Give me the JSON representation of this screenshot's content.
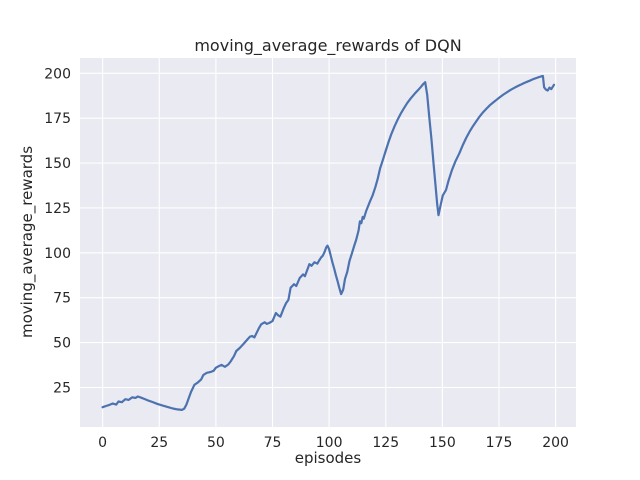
{
  "chart_data": {
    "type": "line",
    "title": "moving_average_rewards of DQN",
    "xlabel": "episodes",
    "ylabel": "moving_average_rewards",
    "x_ticks": [
      0,
      25,
      50,
      75,
      100,
      125,
      150,
      175,
      200
    ],
    "y_ticks": [
      25,
      50,
      75,
      100,
      125,
      150,
      175,
      200
    ],
    "xlim": [
      -10,
      209
    ],
    "ylim": [
      3,
      208.5
    ],
    "grid": true,
    "legend": "none",
    "colors": {
      "line": "#4C72B0",
      "plot_background": "#EAEAF2",
      "gridline": "#FFFFFF",
      "text": "#262626",
      "figure_background": "#FFFFFF"
    },
    "series": [
      {
        "name": "moving_average_rewards",
        "points": [
          [
            0,
            14
          ],
          [
            1.5,
            14.7
          ],
          [
            3,
            15.3
          ],
          [
            4.5,
            16.1
          ],
          [
            6,
            15.5
          ],
          [
            7,
            17.2
          ],
          [
            8.5,
            16.8
          ],
          [
            10,
            18.5
          ],
          [
            11.5,
            18.1
          ],
          [
            13,
            19.5
          ],
          [
            14.5,
            19.2
          ],
          [
            15.5,
            20
          ],
          [
            17,
            19.3
          ],
          [
            18.5,
            18.6
          ],
          [
            20,
            17.8
          ],
          [
            22,
            16.9
          ],
          [
            24,
            15.9
          ],
          [
            26.5,
            14.9
          ],
          [
            29,
            14
          ],
          [
            31,
            13.3
          ],
          [
            33,
            12.8
          ],
          [
            35,
            12.5
          ],
          [
            36,
            13.2
          ],
          [
            37,
            15.5
          ],
          [
            38,
            19
          ],
          [
            39,
            22.5
          ],
          [
            40.5,
            26.5
          ],
          [
            42,
            27.8
          ],
          [
            43.5,
            29.5
          ],
          [
            44.5,
            32
          ],
          [
            46,
            33.2
          ],
          [
            47.5,
            33.6
          ],
          [
            49,
            34.3
          ],
          [
            50,
            36
          ],
          [
            51.5,
            37
          ],
          [
            52.5,
            37.6
          ],
          [
            54,
            36.5
          ],
          [
            55.5,
            37.8
          ],
          [
            56.5,
            39.5
          ],
          [
            58,
            42.5
          ],
          [
            59,
            45.3
          ],
          [
            60.5,
            47
          ],
          [
            62,
            49
          ],
          [
            63.5,
            51.2
          ],
          [
            65,
            53.3
          ],
          [
            66,
            53.7
          ],
          [
            67,
            52.9
          ],
          [
            68,
            55.5
          ],
          [
            69,
            58
          ],
          [
            70,
            60.2
          ],
          [
            71.5,
            61.3
          ],
          [
            72.5,
            60.4
          ],
          [
            73.5,
            60.9
          ],
          [
            75,
            62
          ],
          [
            76.5,
            66.5
          ],
          [
            77.5,
            65.2
          ],
          [
            78.5,
            64.4
          ],
          [
            80,
            69.3
          ],
          [
            81,
            72
          ],
          [
            82,
            73.8
          ],
          [
            83,
            80.5
          ],
          [
            84.5,
            82.5
          ],
          [
            85.5,
            81.5
          ],
          [
            87,
            86
          ],
          [
            88.5,
            88
          ],
          [
            89.3,
            87
          ],
          [
            90.5,
            91
          ],
          [
            91.3,
            93.7
          ],
          [
            92.2,
            92.8
          ],
          [
            93.5,
            94.7
          ],
          [
            94.8,
            94
          ],
          [
            95.5,
            95.5
          ],
          [
            96.5,
            97.5
          ],
          [
            97.2,
            98.4
          ],
          [
            98,
            100.5
          ],
          [
            98.7,
            103
          ],
          [
            99.3,
            104
          ],
          [
            100,
            102
          ],
          [
            100.8,
            98
          ],
          [
            101.5,
            94.5
          ],
          [
            102.3,
            91
          ],
          [
            103,
            87.5
          ],
          [
            103.8,
            84
          ],
          [
            104.5,
            80.5
          ],
          [
            105.3,
            77
          ],
          [
            106.2,
            79.5
          ],
          [
            107,
            85.5
          ],
          [
            108,
            89.5
          ],
          [
            109,
            95.5
          ],
          [
            110,
            99.5
          ],
          [
            111,
            103.5
          ],
          [
            112,
            107.5
          ],
          [
            113,
            112.5
          ],
          [
            113.6,
            117.5
          ],
          [
            114.2,
            116.5
          ],
          [
            114.8,
            120
          ],
          [
            115.3,
            119
          ],
          [
            116.4,
            123.5
          ],
          [
            118,
            128.5
          ],
          [
            119.2,
            132
          ],
          [
            120.4,
            136.5
          ],
          [
            121.4,
            141
          ],
          [
            122.5,
            147
          ],
          [
            123.8,
            152
          ],
          [
            125,
            157
          ],
          [
            126.3,
            162
          ],
          [
            127.6,
            166.5
          ],
          [
            128.9,
            170.5
          ],
          [
            130.2,
            174
          ],
          [
            131.6,
            177.5
          ],
          [
            133,
            180.5
          ],
          [
            134.5,
            183.5
          ],
          [
            136,
            186
          ],
          [
            137.7,
            188.5
          ],
          [
            139.2,
            190.5
          ],
          [
            140.6,
            192.5
          ],
          [
            141.6,
            194
          ],
          [
            142.4,
            195
          ],
          [
            143.3,
            188
          ],
          [
            144.2,
            176
          ],
          [
            145.2,
            163
          ],
          [
            146.1,
            150
          ],
          [
            147,
            137
          ],
          [
            147.7,
            127
          ],
          [
            148.3,
            121
          ],
          [
            149.3,
            127
          ],
          [
            150.2,
            132
          ],
          [
            151.6,
            135
          ],
          [
            152.8,
            140.5
          ],
          [
            154.2,
            146
          ],
          [
            155.8,
            151
          ],
          [
            157.5,
            155.5
          ],
          [
            159,
            160
          ],
          [
            160.5,
            164
          ],
          [
            162,
            167.5
          ],
          [
            163.5,
            170.5
          ],
          [
            165,
            173.3
          ],
          [
            166.5,
            176
          ],
          [
            168,
            178.3
          ],
          [
            169.5,
            180.3
          ],
          [
            171,
            182.2
          ],
          [
            172.5,
            183.8
          ],
          [
            174,
            185.3
          ],
          [
            175.5,
            186.8
          ],
          [
            177,
            188.2
          ],
          [
            178.5,
            189.4
          ],
          [
            180,
            190.6
          ],
          [
            181.5,
            191.7
          ],
          [
            183,
            192.7
          ],
          [
            184.5,
            193.6
          ],
          [
            186,
            194.5
          ],
          [
            187.5,
            195.3
          ],
          [
            189,
            196.1
          ],
          [
            190.5,
            196.9
          ],
          [
            192,
            197.6
          ],
          [
            193.5,
            198.2
          ],
          [
            194.4,
            198.5
          ],
          [
            194.9,
            192.2
          ],
          [
            195.7,
            190.9
          ],
          [
            196.5,
            190.4
          ],
          [
            197.3,
            192
          ],
          [
            198.1,
            191.2
          ],
          [
            199.3,
            193.6
          ]
        ]
      }
    ]
  }
}
